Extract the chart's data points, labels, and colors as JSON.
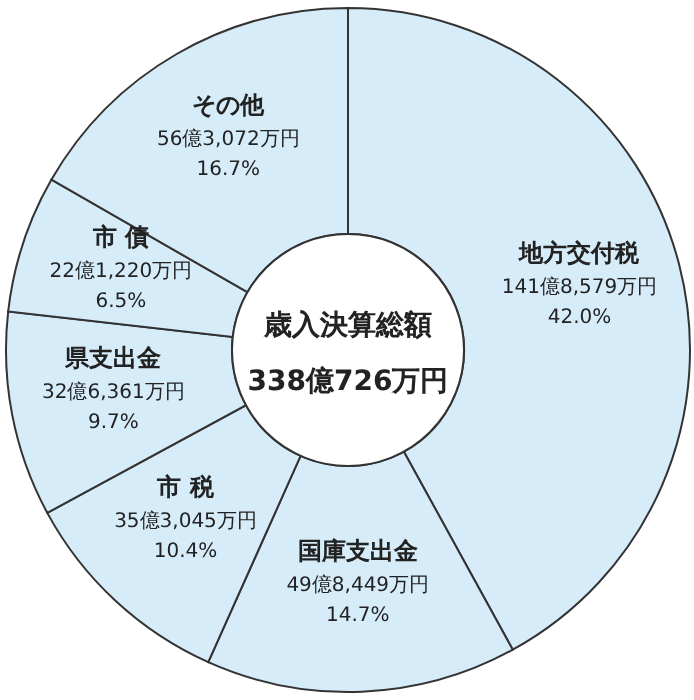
{
  "chart_data": {
    "type": "donut",
    "title": "歳入決算総額",
    "subtitle": "338億726万円",
    "categories": [
      "地方交付税",
      "国庫支出金",
      "市 税",
      "県支出金",
      "市 債",
      "その他"
    ],
    "values": [
      42.0,
      14.7,
      10.4,
      9.7,
      6.5,
      16.7
    ],
    "value_labels": [
      "42.0%",
      "14.7%",
      "10.4%",
      "9.7%",
      "6.5%",
      "16.7%"
    ],
    "annotations": [
      "141億8,579万円",
      "49億8,449万円",
      "35億3,045万円",
      "32億6,361万円",
      "22億1,220万円",
      "56億3,072万円"
    ],
    "colors": [
      "#d6ecf9",
      "#d6ecf9",
      "#d6ecf9",
      "#d6ecf9",
      "#d6ecf9",
      "#d6ecf9"
    ]
  }
}
